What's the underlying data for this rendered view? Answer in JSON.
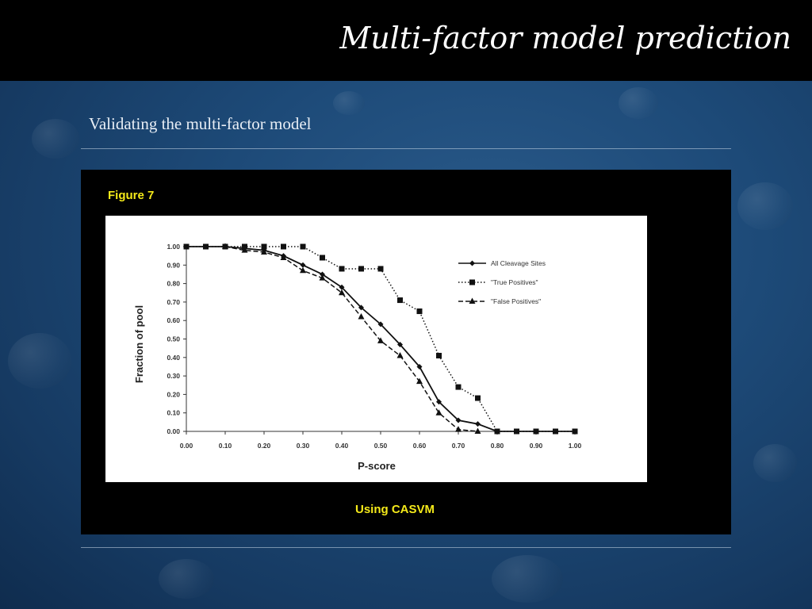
{
  "slide": {
    "title": "Multi-factor model prediction",
    "subtitle": "Validating the multi-factor model",
    "figure_label": "Figure 7",
    "caption": "Using CASVM"
  },
  "colors": {
    "title_bar": "#000000",
    "accent_yellow": "#f5ea1a",
    "background_blue": "#1d4a78"
  },
  "chart_data": {
    "type": "line",
    "xlabel": "P-score",
    "ylabel": "Fraction of pool",
    "xlim": [
      0,
      1
    ],
    "ylim": [
      0,
      1
    ],
    "x_ticks": [
      "0.00",
      "0.10",
      "0.20",
      "0.30",
      "0.40",
      "0.50",
      "0.60",
      "0.70",
      "0.80",
      "0.90",
      "1.00"
    ],
    "y_ticks": [
      "0.00",
      "0.10",
      "0.20",
      "0.30",
      "0.40",
      "0.50",
      "0.60",
      "0.70",
      "0.80",
      "0.90",
      "1.00"
    ],
    "grid": false,
    "legend_position": "top-right",
    "series": [
      {
        "name": "All Cleavage Sites",
        "line_style": "solid",
        "marker": "diamond",
        "x": [
          0.0,
          0.05,
          0.1,
          0.15,
          0.2,
          0.25,
          0.3,
          0.35,
          0.4,
          0.45,
          0.5,
          0.55,
          0.6,
          0.65,
          0.7,
          0.75,
          0.8,
          0.85,
          0.9,
          0.95,
          1.0
        ],
        "y": [
          1.0,
          1.0,
          1.0,
          0.99,
          0.98,
          0.95,
          0.9,
          0.85,
          0.78,
          0.67,
          0.58,
          0.47,
          0.35,
          0.16,
          0.06,
          0.04,
          0.0,
          0.0,
          0.0,
          0.0,
          0.0
        ]
      },
      {
        "name": "\"True Positives\"",
        "line_style": "dotted",
        "marker": "square",
        "x": [
          0.0,
          0.05,
          0.1,
          0.15,
          0.2,
          0.25,
          0.3,
          0.35,
          0.4,
          0.45,
          0.5,
          0.55,
          0.6,
          0.65,
          0.7,
          0.75,
          0.8,
          0.85,
          0.9,
          0.95,
          1.0
        ],
        "y": [
          1.0,
          1.0,
          1.0,
          1.0,
          1.0,
          1.0,
          1.0,
          0.94,
          0.88,
          0.88,
          0.88,
          0.71,
          0.65,
          0.41,
          0.24,
          0.18,
          0.0,
          0.0,
          0.0,
          0.0,
          0.0
        ]
      },
      {
        "name": "\"False Positives\"",
        "line_style": "dashed",
        "marker": "triangle",
        "x": [
          0.1,
          0.15,
          0.2,
          0.25,
          0.3,
          0.35,
          0.4,
          0.45,
          0.5,
          0.55,
          0.6,
          0.65,
          0.7,
          0.75
        ],
        "y": [
          1.0,
          0.98,
          0.97,
          0.94,
          0.87,
          0.83,
          0.75,
          0.62,
          0.49,
          0.41,
          0.27,
          0.1,
          0.01,
          0.0
        ]
      }
    ]
  }
}
